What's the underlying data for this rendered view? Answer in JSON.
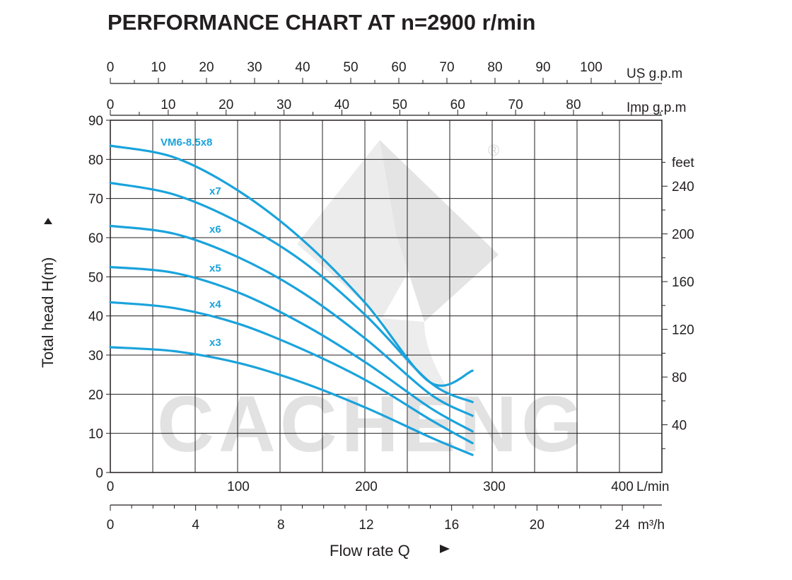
{
  "chart_data": {
    "type": "line",
    "title": "PERFORMANCE CHART AT n=2900 r/min",
    "xlabel": "Flow rate  Q",
    "ylabel": "Total  head H(m)",
    "xlim": [
      0,
      430
    ],
    "ylim": [
      0,
      90
    ],
    "grid": true,
    "x_unit": "L/min",
    "x_ticks": [
      0,
      100,
      200,
      300,
      400
    ],
    "y_ticks": [
      0,
      10,
      20,
      30,
      40,
      50,
      60,
      70,
      80,
      90
    ],
    "axis_m3h": {
      "unit": "m³/h",
      "ticks": [
        0,
        4,
        8,
        12,
        16,
        20,
        24
      ]
    },
    "axis_usgpm": {
      "unit": "US g.p.m",
      "ticks": [
        0,
        10,
        20,
        30,
        40,
        50,
        60,
        70,
        80,
        90,
        100
      ]
    },
    "axis_impgpm": {
      "unit": "Imp g.p.m",
      "ticks": [
        0,
        10,
        20,
        30,
        40,
        50,
        60,
        70,
        80
      ]
    },
    "axis_feet": {
      "unit": "feet",
      "ticks": [
        40,
        80,
        120,
        160,
        200,
        240
      ]
    },
    "line_color": "#1aa3dc",
    "watermark": "CACHENG",
    "registered_mark": "®",
    "series": [
      {
        "name": "VM6-8.5x8",
        "x": [
          0,
          50,
          100,
          150,
          200,
          250,
          283
        ],
        "y": [
          83.5,
          80.5,
          72,
          59.5,
          43,
          23,
          26
        ]
      },
      {
        "name": "x7",
        "x": [
          0,
          50,
          100,
          150,
          200,
          250,
          283
        ],
        "y": [
          74,
          71,
          64,
          54,
          40,
          23,
          18
        ]
      },
      {
        "name": "x6",
        "x": [
          0,
          50,
          100,
          150,
          200,
          250,
          283
        ],
        "y": [
          63,
          61,
          55,
          46,
          34,
          20,
          14.5
        ]
      },
      {
        "name": "x5",
        "x": [
          0,
          50,
          100,
          150,
          200,
          250,
          283
        ],
        "y": [
          52.5,
          51,
          46,
          38,
          28,
          16.5,
          10.5
        ]
      },
      {
        "name": "x4",
        "x": [
          0,
          50,
          100,
          150,
          200,
          250,
          283
        ],
        "y": [
          43.5,
          42,
          38,
          31.5,
          23.5,
          13.5,
          7.5
        ]
      },
      {
        "name": "x3",
        "x": [
          0,
          50,
          100,
          150,
          200,
          250,
          283
        ],
        "y": [
          32,
          31,
          28,
          23,
          16.5,
          9,
          4.5
        ]
      }
    ]
  }
}
